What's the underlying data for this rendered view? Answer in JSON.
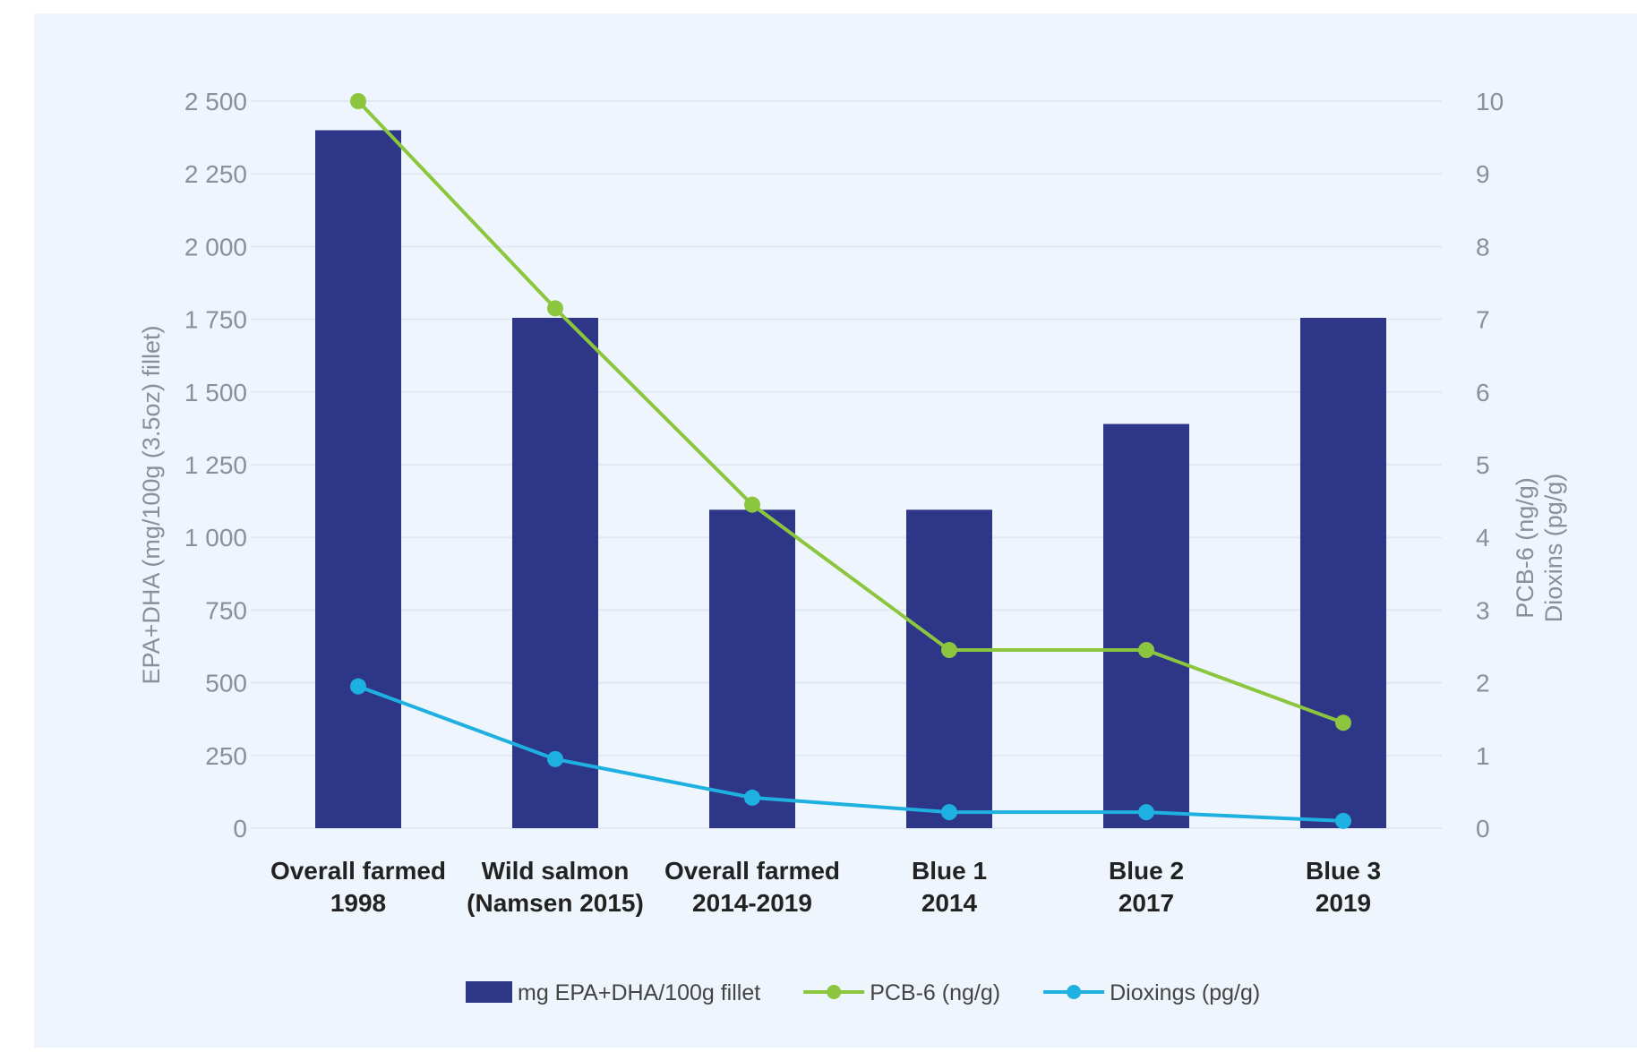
{
  "chart_data": {
    "type": "bar",
    "categories": [
      [
        "Overall farmed",
        "1998"
      ],
      [
        "Wild salmon",
        "(Namsen 2015)"
      ],
      [
        "Overall farmed",
        "2014-2019"
      ],
      [
        "Blue 1",
        "2014"
      ],
      [
        "Blue 2",
        "2017"
      ],
      [
        "Blue 3",
        "2019"
      ]
    ],
    "series": [
      {
        "name": "mg EPA+DHA/100g fillet",
        "type": "bar",
        "axis": "left",
        "color": "#2e3787",
        "values": [
          2400,
          1755,
          1095,
          1095,
          1390,
          1755
        ]
      },
      {
        "name": "PCB-6 (ng/g)",
        "type": "line",
        "axis": "right",
        "color": "#8cc63f",
        "values": [
          10,
          7.15,
          4.45,
          2.45,
          2.45,
          1.45
        ]
      },
      {
        "name": "Dioxings (pg/g)",
        "type": "line",
        "axis": "right",
        "color": "#1eb0e0",
        "values": [
          1.95,
          0.95,
          0.42,
          0.22,
          0.22,
          0.1
        ]
      }
    ],
    "left_axis": {
      "label": "EPA+DHA (mg/100g (3.5oz) fillet)",
      "ylim": [
        0,
        2500
      ],
      "ticks": [
        0,
        250,
        500,
        750,
        1000,
        1250,
        1500,
        1750,
        2000,
        2250,
        2500
      ],
      "tick_labels": [
        "0",
        "250",
        "500",
        "750",
        "1 000",
        "1 250",
        "1 500",
        "1 750",
        "2 000",
        "2 250",
        "2 500"
      ]
    },
    "right_axis": {
      "label_lines": [
        "PCB-6 (ng/g)",
        "Dioxins (pg/g)"
      ],
      "ylim": [
        0,
        10
      ],
      "ticks": [
        0,
        1,
        2,
        3,
        4,
        5,
        6,
        7,
        8,
        9,
        10
      ],
      "tick_labels": [
        "0",
        "1",
        "2",
        "3",
        "4",
        "5",
        "6",
        "7",
        "8",
        "9",
        "10"
      ]
    },
    "grid": true,
    "legend_position": "bottom",
    "colors": {
      "background": "#eef5fc",
      "grid": "#dfe8f3"
    }
  }
}
